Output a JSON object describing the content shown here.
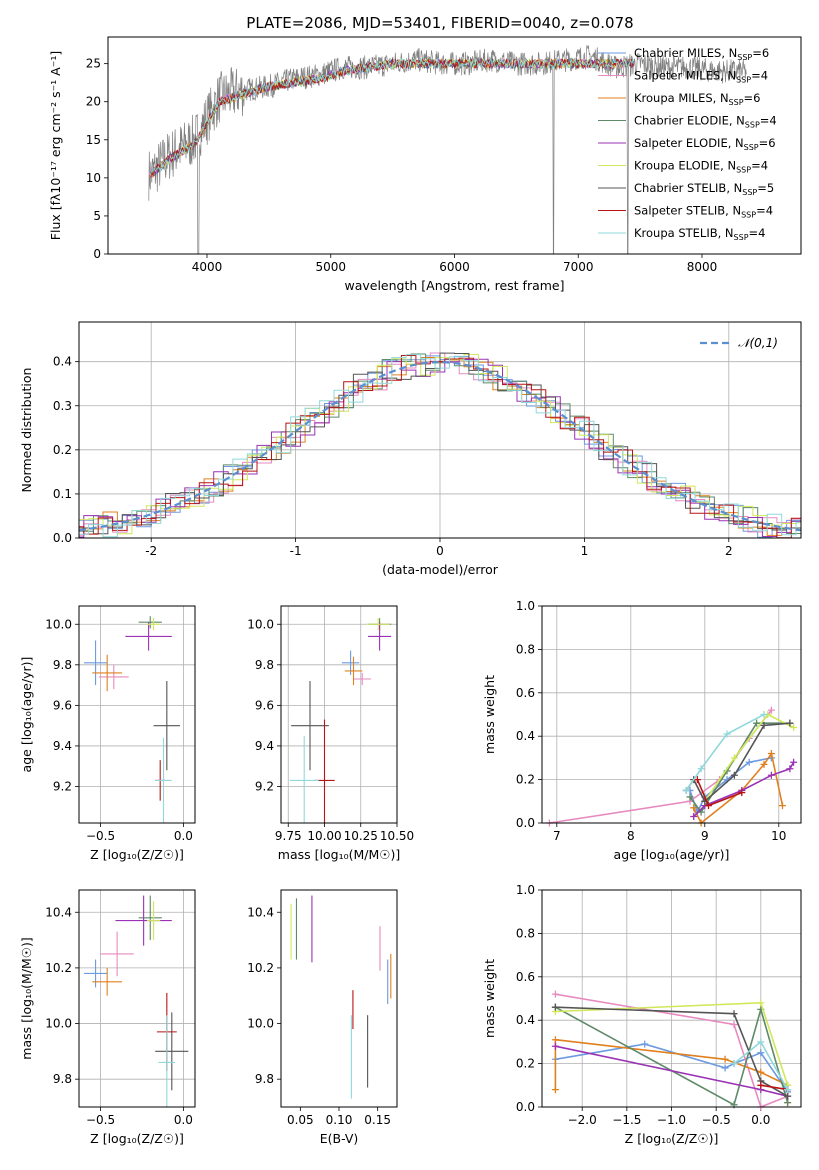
{
  "figure_title": "PLATE=2086, MJD=53401, FIBERID=0040, z=0.078",
  "colors": {
    "chab_miles": "#6b9ae0",
    "salp_miles": "#e78ac0",
    "krou_miles": "#e0801f",
    "chab_elodie": "#5e8a68",
    "salp_elodie": "#9a32b5",
    "krou_elodie": "#d0e85a",
    "chab_stelib": "#555555",
    "salp_stelib": "#b81414",
    "krou_stelib": "#8fd8dc",
    "gauss": "#5b8fd0",
    "grid": "#b0b0b0"
  },
  "chart_data": [
    {
      "id": "spectrum",
      "type": "line",
      "title": "PLATE=2086, MJD=53401, FIBERID=0040, z=0.078",
      "xlabel": "wavelength [Angstrom, rest frame]",
      "ylabel": "Flux [fλ10⁻¹⁷ erg cm⁻² s⁻¹ A⁻¹]",
      "xlim": [
        3200,
        8800
      ],
      "ylim": [
        0,
        28.5
      ],
      "xticks": [
        4000,
        5000,
        6000,
        7000,
        8000
      ],
      "yticks": [
        0,
        5,
        10,
        15,
        20,
        25
      ],
      "grid": false,
      "legend_position": "right",
      "data_wavelength": [
        3550,
        3700,
        3900,
        4100,
        4300,
        4500,
        4700,
        4900,
        5100,
        5300,
        5500,
        5700,
        5900,
        6100,
        6300,
        6500,
        6700,
        6900,
        7100,
        7300,
        7500,
        7700,
        7900,
        8100,
        8300
      ],
      "data_flux": [
        10.5,
        13,
        15,
        20.5,
        21.5,
        22,
        23,
        23.5,
        24.5,
        24.5,
        25,
        25.5,
        25,
        25,
        25.5,
        25,
        25,
        25.5,
        26,
        24.5,
        25,
        24.5,
        24.5,
        24,
        24
      ],
      "model_flux": [
        10.5,
        12.5,
        14.5,
        20,
        21,
        22,
        22.5,
        23,
        24,
        24.5,
        25,
        25,
        25,
        25,
        25,
        25,
        25,
        25,
        25,
        25,
        25,
        25,
        25,
        25,
        25
      ],
      "legend": [
        {
          "label": "Chabrier MILES, N",
          "color_key": "chab_miles",
          "n": "6"
        },
        {
          "label": "Salpeter MILES, N",
          "color_key": "salp_miles",
          "n": "4"
        },
        {
          "label": "Kroupa MILES, N",
          "color_key": "krou_miles",
          "n": "6"
        },
        {
          "label": "Chabrier ELODIE, N",
          "color_key": "chab_elodie",
          "n": "4"
        },
        {
          "label": "Salpeter ELODIE, N",
          "color_key": "salp_elodie",
          "n": "6"
        },
        {
          "label": "Kroupa ELODIE, N",
          "color_key": "krou_elodie",
          "n": "4"
        },
        {
          "label": "Chabrier STELIB, N",
          "color_key": "chab_stelib",
          "n": "5"
        },
        {
          "label": "Salpeter STELIB, N",
          "color_key": "salp_stelib",
          "n": "4"
        },
        {
          "label": "Kroupa STELIB, N",
          "color_key": "krou_stelib",
          "n": "4"
        }
      ],
      "legend_subscript": "SSP"
    },
    {
      "id": "residuals",
      "type": "area",
      "xlabel": "(data-model)/error",
      "ylabel": "Normed distribution",
      "xlim": [
        -2.5,
        2.5
      ],
      "ylim": [
        0,
        0.49
      ],
      "xticks": [
        -2,
        -1,
        0,
        1,
        2
      ],
      "yticks": [
        0.0,
        0.1,
        0.2,
        0.3,
        0.4
      ],
      "grid": true,
      "legend": [
        {
          "label": "𝒩(0,1)",
          "style": "dashed"
        }
      ],
      "gauss_mean": 0,
      "gauss_sigma": 1
    },
    {
      "id": "age_vs_Z",
      "type": "scatter",
      "xlabel": "Z [log₁₀(Z/Z☉)]",
      "ylabel": "age  [log₁₀(age/yr)]",
      "xlim": [
        -0.63,
        0.07
      ],
      "ylim": [
        9.02,
        10.09
      ],
      "xticks": [
        -0.5,
        0.0
      ],
      "xticklabels": [
        "−0.5",
        "0.0"
      ],
      "yticks": [
        9.2,
        9.4,
        9.6,
        9.8,
        10.0
      ],
      "grid": true,
      "points": [
        {
          "c": "chab_miles",
          "x": -0.53,
          "y": 9.81,
          "ex": 0.07,
          "ey": 0.11
        },
        {
          "c": "salp_miles",
          "x": -0.42,
          "y": 9.74,
          "ex": 0.09,
          "ey": 0.06
        },
        {
          "c": "krou_miles",
          "x": -0.46,
          "y": 9.76,
          "ex": 0.09,
          "ey": 0.09
        },
        {
          "c": "chab_elodie",
          "x": -0.2,
          "y": 10.01,
          "ex": 0.07,
          "ey": 0.03
        },
        {
          "c": "salp_elodie",
          "x": -0.21,
          "y": 9.94,
          "ex": 0.14,
          "ey": 0.07
        },
        {
          "c": "krou_elodie",
          "x": -0.18,
          "y": 10.0,
          "ex": 0.04,
          "ey": 0.03
        },
        {
          "c": "chab_stelib",
          "x": -0.1,
          "y": 9.5,
          "ex": 0.08,
          "ey": 0.22
        },
        {
          "c": "salp_stelib",
          "x": -0.14,
          "y": 9.23,
          "ex": 0.03,
          "ey": 0.1
        },
        {
          "c": "krou_stelib",
          "x": -0.12,
          "y": 9.23,
          "ex": 0.05,
          "ey": 0.21
        }
      ]
    },
    {
      "id": "age_vs_mass",
      "type": "scatter",
      "xlabel": "mass [log₁₀(M/M☉)]",
      "ylabel": "",
      "xlim": [
        9.7,
        10.5
      ],
      "ylim": [
        9.02,
        10.09
      ],
      "xticks": [
        9.75,
        10.0,
        10.25,
        10.5
      ],
      "xticklabels": [
        "9.75",
        "10.00",
        "10.25",
        "10.50"
      ],
      "yticks": [
        9.2,
        9.4,
        9.6,
        9.8,
        10.0
      ],
      "grid": true,
      "points": [
        {
          "c": "chab_miles",
          "x": 10.18,
          "y": 9.81,
          "ex": 0.06,
          "ey": 0.06
        },
        {
          "c": "salp_miles",
          "x": 10.26,
          "y": 9.73,
          "ex": 0.06,
          "ey": 0.03
        },
        {
          "c": "krou_miles",
          "x": 10.2,
          "y": 9.77,
          "ex": 0.06,
          "ey": 0.07
        },
        {
          "c": "chab_elodie",
          "x": 10.38,
          "y": 10.0,
          "ex": 0.08,
          "ey": 0.03
        },
        {
          "c": "salp_elodie",
          "x": 10.38,
          "y": 9.94,
          "ex": 0.08,
          "ey": 0.07
        },
        {
          "c": "krou_elodie",
          "x": 10.37,
          "y": 10.0,
          "ex": 0.08,
          "ey": 0.03
        },
        {
          "c": "chab_stelib",
          "x": 9.9,
          "y": 9.5,
          "ex": 0.13,
          "ey": 0.22
        },
        {
          "c": "salp_stelib",
          "x": 10.0,
          "y": 9.23,
          "ex": 0.07,
          "ey": 0.3
        },
        {
          "c": "krou_stelib",
          "x": 9.86,
          "y": 9.23,
          "ex": 0.1,
          "ey": 0.22
        }
      ]
    },
    {
      "id": "massweight_vs_age",
      "type": "line",
      "xlabel": "age  [log₁₀(age/yr)]",
      "ylabel": "mass weight",
      "xlim": [
        6.8,
        10.3
      ],
      "ylim": [
        0,
        1.0
      ],
      "xticks": [
        7,
        8,
        9,
        10
      ],
      "yticks": [
        0.0,
        0.2,
        0.4,
        0.6,
        0.8,
        1.0
      ],
      "grid": true,
      "series": [
        {
          "c": "chab_miles",
          "x": [
            8.8,
            8.9,
            9.0,
            9.3,
            9.6,
            9.9
          ],
          "y": [
            0.15,
            0.05,
            0.12,
            0.2,
            0.28,
            0.3
          ]
        },
        {
          "c": "salp_miles",
          "x": [
            6.9,
            8.8,
            9.2,
            9.6,
            9.9
          ],
          "y": [
            0.0,
            0.1,
            0.2,
            0.39,
            0.52
          ]
        },
        {
          "c": "krou_miles",
          "x": [
            8.85,
            8.95,
            9.5,
            9.8,
            9.9,
            10.05
          ],
          "y": [
            0.07,
            0.0,
            0.15,
            0.27,
            0.32,
            0.08
          ]
        },
        {
          "c": "chab_elodie",
          "x": [
            8.8,
            8.95,
            9.3,
            9.7,
            10.15
          ],
          "y": [
            0.12,
            0.05,
            0.24,
            0.46,
            0.46
          ]
        },
        {
          "c": "salp_elodie",
          "x": [
            8.85,
            9.0,
            9.5,
            9.9,
            10.15,
            10.2
          ],
          "y": [
            0.03,
            0.08,
            0.15,
            0.22,
            0.25,
            0.28
          ]
        },
        {
          "c": "krou_elodie",
          "x": [
            9.0,
            9.4,
            9.85,
            10.2
          ],
          "y": [
            0.1,
            0.3,
            0.5,
            0.44
          ]
        },
        {
          "c": "chab_stelib",
          "x": [
            8.75,
            8.85,
            9.0,
            9.4,
            9.8,
            10.15
          ],
          "y": [
            0.15,
            0.2,
            0.1,
            0.22,
            0.45,
            0.46
          ]
        },
        {
          "c": "salp_stelib",
          "x": [
            8.9,
            9.05,
            9.5
          ],
          "y": [
            0.2,
            0.08,
            0.14
          ]
        },
        {
          "c": "krou_stelib",
          "x": [
            8.75,
            8.95,
            9.3,
            9.8
          ],
          "y": [
            0.15,
            0.25,
            0.41,
            0.5
          ]
        }
      ]
    },
    {
      "id": "mass_vs_Z",
      "type": "scatter",
      "xlabel": "Z [log₁₀(Z/Z☉)]",
      "ylabel": "mass [log₁₀(M/M☉)]",
      "xlim": [
        -0.63,
        0.07
      ],
      "ylim": [
        9.7,
        10.48
      ],
      "xticks": [
        -0.5,
        0.0
      ],
      "xticklabels": [
        "−0.5",
        "0.0"
      ],
      "yticks": [
        9.8,
        10.0,
        10.2,
        10.4
      ],
      "grid": true,
      "points": [
        {
          "c": "chab_miles",
          "x": -0.53,
          "y": 10.18,
          "ex": 0.07,
          "ey": 0.05
        },
        {
          "c": "salp_miles",
          "x": -0.4,
          "y": 10.25,
          "ex": 0.1,
          "ey": 0.08
        },
        {
          "c": "krou_miles",
          "x": -0.46,
          "y": 10.15,
          "ex": 0.09,
          "ey": 0.05
        },
        {
          "c": "chab_elodie",
          "x": -0.2,
          "y": 10.38,
          "ex": 0.07,
          "ey": 0.08
        },
        {
          "c": "salp_elodie",
          "x": -0.24,
          "y": 10.37,
          "ex": 0.17,
          "ey": 0.09
        },
        {
          "c": "krou_elodie",
          "x": -0.18,
          "y": 10.37,
          "ex": 0.04,
          "ey": 0.07
        },
        {
          "c": "chab_stelib",
          "x": -0.07,
          "y": 9.9,
          "ex": 0.1,
          "ey": 0.14
        },
        {
          "c": "salp_stelib",
          "x": -0.1,
          "y": 9.97,
          "ex": 0.06,
          "ey": 0.14
        },
        {
          "c": "krou_stelib",
          "x": -0.1,
          "y": 9.86,
          "ex": 0.05,
          "ey": 0.17
        }
      ]
    },
    {
      "id": "mass_vs_ebv",
      "type": "scatter",
      "xlabel": "E(B-V)",
      "ylabel": "",
      "xlim": [
        0.025,
        0.175
      ],
      "ylim": [
        9.7,
        10.48
      ],
      "xticks": [
        0.05,
        0.1,
        0.15
      ],
      "xticklabels": [
        "0.05",
        "0.10",
        "0.15"
      ],
      "yticks": [
        9.8,
        10.0,
        10.2,
        10.4
      ],
      "grid": false,
      "points": [
        {
          "c": "chab_miles",
          "x": 0.163,
          "y": 10.15,
          "ex": 0,
          "ey": 0.08
        },
        {
          "c": "salp_miles",
          "x": 0.153,
          "y": 10.27,
          "ex": 0,
          "ey": 0.08
        },
        {
          "c": "krou_miles",
          "x": 0.167,
          "y": 10.17,
          "ex": 0,
          "ey": 0.08
        },
        {
          "c": "chab_elodie",
          "x": 0.045,
          "y": 10.34,
          "ex": 0,
          "ey": 0.11
        },
        {
          "c": "salp_elodie",
          "x": 0.065,
          "y": 10.34,
          "ex": 0,
          "ey": 0.12
        },
        {
          "c": "krou_elodie",
          "x": 0.038,
          "y": 10.33,
          "ex": 0,
          "ey": 0.1
        },
        {
          "c": "chab_stelib",
          "x": 0.137,
          "y": 9.9,
          "ex": 0,
          "ey": 0.13
        },
        {
          "c": "salp_stelib",
          "x": 0.118,
          "y": 10.05,
          "ex": 0,
          "ey": 0.07
        },
        {
          "c": "krou_stelib",
          "x": 0.116,
          "y": 9.88,
          "ex": 0,
          "ey": 0.15
        }
      ]
    },
    {
      "id": "massweight_vs_Z",
      "type": "line",
      "xlabel": "Z [log₁₀(Z/Z☉)]",
      "ylabel": "mass weight",
      "xlim": [
        -2.45,
        0.45
      ],
      "ylim": [
        0,
        1.0
      ],
      "xticks": [
        -2.0,
        -1.5,
        -1.0,
        -0.5,
        0.0
      ],
      "xticklabels": [
        "−2.0",
        "−1.5",
        "−1.0",
        "−0.5",
        "0.0"
      ],
      "yticks": [
        0.0,
        0.2,
        0.4,
        0.6,
        0.8,
        1.0
      ],
      "grid": true,
      "series": [
        {
          "c": "chab_miles",
          "x": [
            -2.3,
            -1.3,
            -0.4,
            -0.3,
            0.0,
            0.3
          ],
          "y": [
            0.22,
            0.29,
            0.18,
            0.2,
            0.25,
            0.07
          ]
        },
        {
          "c": "salp_miles",
          "x": [
            -2.3,
            -0.3,
            0.0,
            0.3
          ],
          "y": [
            0.52,
            0.38,
            0.0,
            0.05
          ]
        },
        {
          "c": "krou_miles",
          "x": [
            -2.3,
            -2.3,
            -0.4,
            0.0,
            0.3,
            0.3
          ],
          "y": [
            0.08,
            0.31,
            0.22,
            0.16,
            0.1,
            0.02
          ]
        },
        {
          "c": "chab_elodie",
          "x": [
            -2.3,
            -0.3,
            0.0,
            0.3
          ],
          "y": [
            0.46,
            0.01,
            0.45,
            0.02
          ]
        },
        {
          "c": "salp_elodie",
          "x": [
            -2.3,
            0.0,
            0.3
          ],
          "y": [
            0.28,
            0.08,
            0.05
          ]
        },
        {
          "c": "krou_elodie",
          "x": [
            -2.3,
            0.0,
            0.3
          ],
          "y": [
            0.44,
            0.48,
            0.1
          ]
        },
        {
          "c": "chab_stelib",
          "x": [
            -2.3,
            -0.3,
            0.0,
            0.3
          ],
          "y": [
            0.46,
            0.43,
            0.12,
            0.05
          ]
        },
        {
          "c": "salp_stelib",
          "x": [
            0.0,
            0.3
          ],
          "y": [
            0.1,
            0.08
          ]
        },
        {
          "c": "krou_stelib",
          "x": [
            -0.3,
            0.0,
            0.3
          ],
          "y": [
            0.2,
            0.3,
            0.08
          ]
        }
      ]
    }
  ]
}
